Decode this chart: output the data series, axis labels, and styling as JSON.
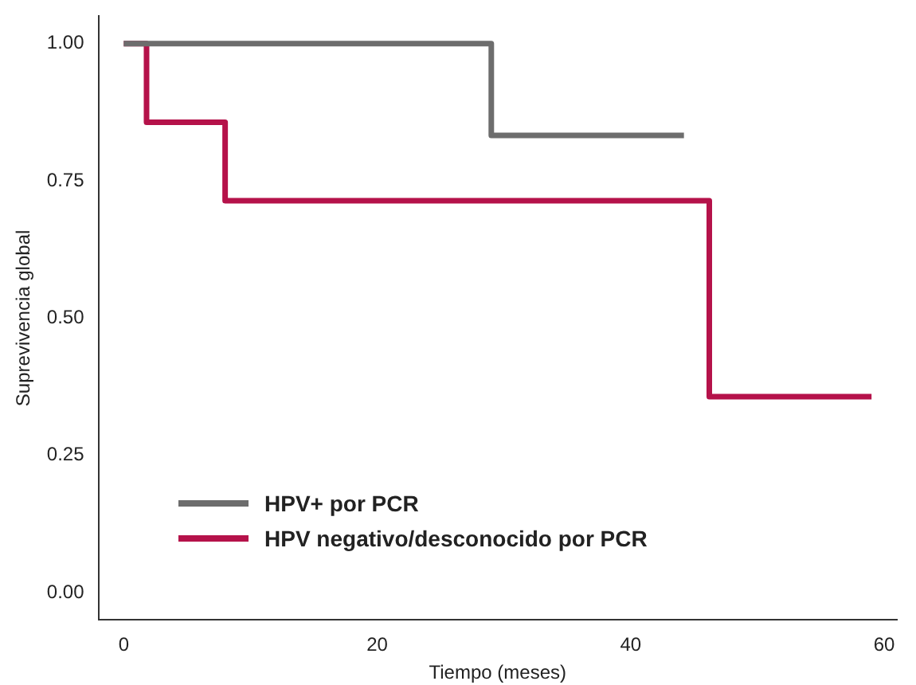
{
  "chart_data": {
    "type": "step",
    "xlabel": "Tiempo (meses)",
    "ylabel": "Suprevivencia global",
    "xlim": [
      -2,
      61
    ],
    "xticks": [
      0,
      20,
      40,
      60
    ],
    "ylim": [
      -0.05,
      1.05
    ],
    "yticks": [
      {
        "value": 0,
        "label": "0.00"
      },
      {
        "value": 0.25,
        "label": "0.25"
      },
      {
        "value": 0.5,
        "label": "0.50"
      },
      {
        "value": 0.75,
        "label": "0.75"
      },
      {
        "value": 1,
        "label": "1.00"
      }
    ],
    "grid": false,
    "legend": "bottom left",
    "marker": "none",
    "line_style": "solid",
    "series": [
      {
        "name": "HPV+ por PCR",
        "color": "#6d6d6d",
        "x": [
          0,
          29,
          44.2
        ],
        "values": [
          1,
          0.833,
          0.833
        ]
      },
      {
        "name": "HPV negativo/desconocido por PCR",
        "color": "#b5124a",
        "x": [
          0,
          1.8,
          8,
          46.2,
          59
        ],
        "values": [
          1,
          0.857,
          0.714,
          0.357,
          0.357
        ]
      }
    ]
  }
}
